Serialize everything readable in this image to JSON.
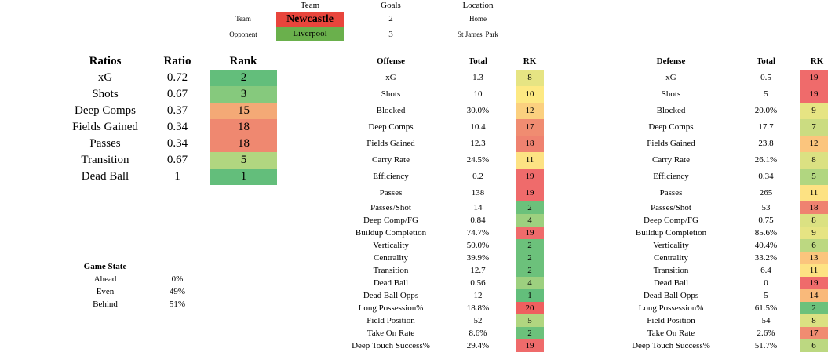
{
  "header": {
    "col_team": "Team",
    "col_goals": "Goals",
    "col_location": "Location",
    "rows": [
      {
        "label": "Team",
        "team": "Newcastle",
        "goals": "2",
        "location": "Home",
        "color": "#e8453c"
      },
      {
        "label": "Opponent",
        "team": "Liverpool",
        "goals": "3",
        "location": "St James' Park",
        "color": "#6ab04c"
      }
    ]
  },
  "ratios": {
    "title": "Ratios",
    "col_ratio": "Ratio",
    "col_rank": "Rank",
    "rows": [
      {
        "name": "xG",
        "ratio": "0.72",
        "rank": "2",
        "color": "#63be7b"
      },
      {
        "name": "Shots",
        "ratio": "0.67",
        "rank": "3",
        "color": "#86c97d"
      },
      {
        "name": "Deep Comps",
        "ratio": "0.37",
        "rank": "15",
        "color": "#f4a976"
      },
      {
        "name": "Fields Gained",
        "ratio": "0.34",
        "rank": "18",
        "color": "#ef8870"
      },
      {
        "name": "Passes",
        "ratio": "0.34",
        "rank": "18",
        "color": "#ef8870"
      },
      {
        "name": "Transition",
        "ratio": "0.67",
        "rank": "5",
        "color": "#b1d680"
      },
      {
        "name": "Dead Ball",
        "ratio": "1",
        "rank": "1",
        "color": "#63be7b"
      }
    ]
  },
  "game_state": {
    "title": "Game State",
    "rows": [
      {
        "name": "Ahead",
        "value": "0%"
      },
      {
        "name": "Even",
        "value": "49%"
      },
      {
        "name": "Behind",
        "value": "51%"
      }
    ]
  },
  "offense": {
    "title": "Offense",
    "col_total": "Total",
    "col_rk": "RK",
    "rows": [
      {
        "name": "xG",
        "total": "1.3",
        "rk": "8",
        "color": "#e6e483"
      },
      {
        "name": "Shots",
        "total": "10",
        "rk": "10",
        "color": "#fde983"
      },
      {
        "name": "Blocked",
        "total": "30.0%",
        "rk": "12",
        "color": "#fbd07f"
      },
      {
        "name": "Deep Comps",
        "total": "10.4",
        "rk": "17",
        "color": "#f08c71"
      },
      {
        "name": "Fields Gained",
        "total": "12.3",
        "rk": "18",
        "color": "#ef8270"
      },
      {
        "name": "Carry Rate",
        "total": "24.5%",
        "rk": "11",
        "color": "#fde283"
      },
      {
        "name": "Efficiency",
        "total": "0.2",
        "rk": "19",
        "color": "#ef6b6b"
      },
      {
        "name": "Passes",
        "total": "138",
        "rk": "19",
        "color": "#ef6b6b"
      },
      {
        "name": "Passes/Shot",
        "total": "14",
        "rk": "2",
        "color": "#6cc17b"
      },
      {
        "name": "Deep Comp/FG",
        "total": "0.84",
        "rk": "4",
        "color": "#9dd07f"
      },
      {
        "name": "Buildup Completion",
        "total": "74.7%",
        "rk": "19",
        "color": "#ef6b6b"
      },
      {
        "name": "Verticality",
        "total": "50.0%",
        "rk": "2",
        "color": "#6cc17b"
      },
      {
        "name": "Centrality",
        "total": "39.9%",
        "rk": "2",
        "color": "#6cc17b"
      },
      {
        "name": "Transition",
        "total": "12.7",
        "rk": "2",
        "color": "#6cc17b"
      },
      {
        "name": "Dead Ball",
        "total": "0.56",
        "rk": "4",
        "color": "#9dd07f"
      },
      {
        "name": "Dead Ball Opps",
        "total": "12",
        "rk": "1",
        "color": "#63be7b"
      },
      {
        "name": "Long Possession%",
        "total": "18.8%",
        "rk": "20",
        "color": "#ef5f5f"
      },
      {
        "name": "Field Position",
        "total": "52",
        "rk": "5",
        "color": "#b1d680"
      },
      {
        "name": "Take On Rate",
        "total": "8.6%",
        "rk": "2",
        "color": "#6cc17b"
      },
      {
        "name": "Deep Touch Success%",
        "total": "29.4%",
        "rk": "19",
        "color": "#ef6b6b"
      }
    ]
  },
  "defense": {
    "title": "Defense",
    "col_total": "Total",
    "col_rk": "RK",
    "rows": [
      {
        "name": "xG",
        "total": "0.5",
        "rk": "19",
        "color": "#ef6b6b"
      },
      {
        "name": "Shots",
        "total": "5",
        "rk": "19",
        "color": "#ef6b6b"
      },
      {
        "name": "Blocked",
        "total": "20.0%",
        "rk": "9",
        "color": "#e6e483"
      },
      {
        "name": "Deep Comps",
        "total": "17.7",
        "rk": "7",
        "color": "#cbdc81"
      },
      {
        "name": "Fields Gained",
        "total": "23.8",
        "rk": "12",
        "color": "#fbc57d"
      },
      {
        "name": "Carry Rate",
        "total": "26.1%",
        "rk": "8",
        "color": "#dbe182"
      },
      {
        "name": "Efficiency",
        "total": "0.34",
        "rk": "5",
        "color": "#b1d680"
      },
      {
        "name": "Passes",
        "total": "265",
        "rk": "11",
        "color": "#fde283"
      },
      {
        "name": "Passes/Shot",
        "total": "53",
        "rk": "18",
        "color": "#ef8270"
      },
      {
        "name": "Deep Comp/FG",
        "total": "0.75",
        "rk": "8",
        "color": "#dbe182"
      },
      {
        "name": "Buildup Completion",
        "total": "85.6%",
        "rk": "9",
        "color": "#e6e483"
      },
      {
        "name": "Verticality",
        "total": "40.4%",
        "rk": "6",
        "color": "#bcd881"
      },
      {
        "name": "Centrality",
        "total": "33.2%",
        "rk": "13",
        "color": "#fbc57d"
      },
      {
        "name": "Transition",
        "total": "6.4",
        "rk": "11",
        "color": "#fde283"
      },
      {
        "name": "Dead Ball",
        "total": "0",
        "rk": "19",
        "color": "#ef6b6b"
      },
      {
        "name": "Dead Ball Opps",
        "total": "5",
        "rk": "14",
        "color": "#f9b97a"
      },
      {
        "name": "Long Possession%",
        "total": "61.5%",
        "rk": "2",
        "color": "#6cc17b"
      },
      {
        "name": "Field Position",
        "total": "54",
        "rk": "8",
        "color": "#dbe182"
      },
      {
        "name": "Take On Rate",
        "total": "2.6%",
        "rk": "17",
        "color": "#f08c71"
      },
      {
        "name": "Deep Touch Success%",
        "total": "51.7%",
        "rk": "6",
        "color": "#bcd881"
      }
    ]
  }
}
